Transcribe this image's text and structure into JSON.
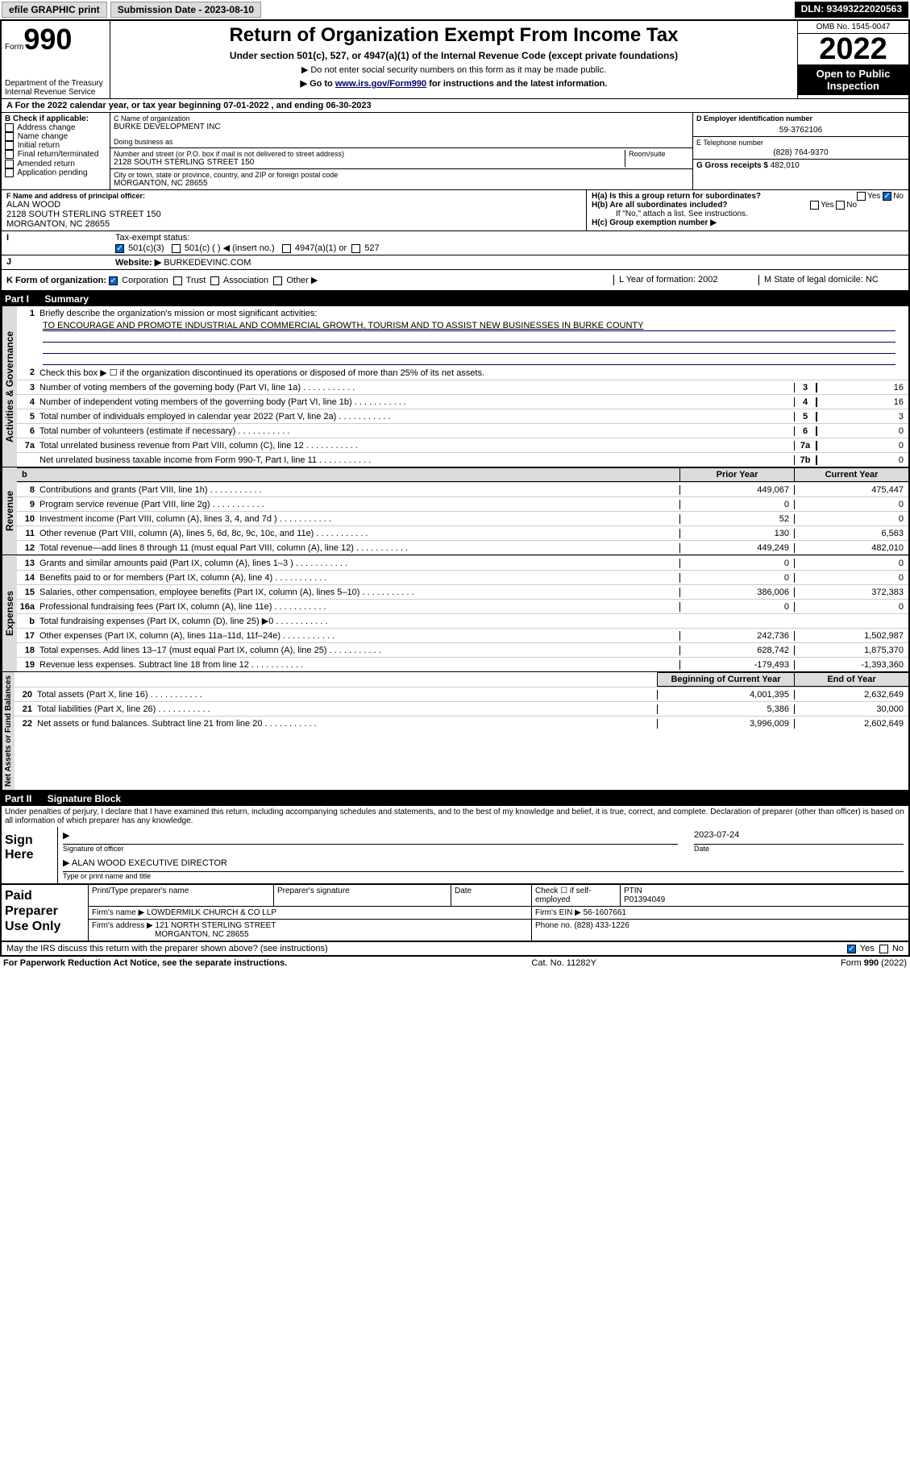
{
  "topbar": {
    "efile": "efile GRAPHIC print",
    "submission": "Submission Date - 2023-08-10",
    "dln": "DLN: 93493222020563"
  },
  "header": {
    "form_word": "Form",
    "form_num": "990",
    "dept": "Department of the Treasury\nInternal Revenue Service",
    "title": "Return of Organization Exempt From Income Tax",
    "sub1": "Under section 501(c), 527, or 4947(a)(1) of the Internal Revenue Code (except private foundations)",
    "sub2": "▶ Do not enter social security numbers on this form as it may be made public.",
    "sub3_pre": "▶ Go to ",
    "sub3_link": "www.irs.gov/Form990",
    "sub3_post": " for instructions and the latest information.",
    "omb": "OMB No. 1545-0047",
    "year": "2022",
    "open": "Open to Public Inspection"
  },
  "period": {
    "label_a": "A For the 2022 calendar year, or tax year beginning ",
    "begin": "07-01-2022",
    "mid": " , and ending ",
    "end": "06-30-2023"
  },
  "boxB": {
    "label": "B Check if applicable:",
    "items": [
      "Address change",
      "Name change",
      "Initial return",
      "Final return/terminated",
      "Amended return",
      "Application pending"
    ]
  },
  "boxC": {
    "name_label": "C Name of organization",
    "name": "BURKE DEVELOPMENT INC",
    "dba_label": "Doing business as",
    "street_label": "Number and street (or P.O. box if mail is not delivered to street address)",
    "room_label": "Room/suite",
    "street": "2128 SOUTH STERLING STREET 150",
    "city_label": "City or town, state or province, country, and ZIP or foreign postal code",
    "city": "MORGANTON, NC  28655"
  },
  "boxD": {
    "label": "D Employer identification number",
    "value": "59-3762106"
  },
  "boxE": {
    "label": "E Telephone number",
    "value": "(828) 764-9370"
  },
  "boxG": {
    "label": "G Gross receipts $ ",
    "value": "482,010"
  },
  "boxF": {
    "label": "F Name and address of principal officer:",
    "name": "ALAN WOOD",
    "addr1": "2128 SOUTH STERLING STREET 150",
    "addr2": "MORGANTON, NC  28655"
  },
  "boxH": {
    "a": "H(a)  Is this a group return for subordinates?",
    "b": "H(b)  Are all subordinates included?",
    "b_note": "If \"No,\" attach a list. See instructions.",
    "c": "H(c)  Group exemption number ▶",
    "yes": "Yes",
    "no": "No"
  },
  "lineI": {
    "label": "Tax-exempt status:",
    "opts": [
      "501(c)(3)",
      "501(c) (  ) ◀ (insert no.)",
      "4947(a)(1) or",
      "527"
    ]
  },
  "lineJ": {
    "label": "Website: ▶",
    "value": "BURKEDEVINC.COM"
  },
  "lineK": {
    "label": "K Form of organization:",
    "opts": [
      "Corporation",
      "Trust",
      "Association",
      "Other ▶"
    ],
    "L": "L Year of formation: 2002",
    "M": "M State of legal domicile: NC"
  },
  "part1": {
    "name": "Part I",
    "title": "Summary"
  },
  "summary": {
    "q1": "Briefly describe the organization's mission or most significant activities:",
    "q1v": "TO ENCOURAGE AND PROMOTE INDUSTRIAL AND COMMERCIAL GROWTH, TOURISM AND TO ASSIST NEW BUSINESSES IN BURKE COUNTY",
    "q2": "Check this box ▶ ☐  if the organization discontinued its operations or disposed of more than 25% of its net assets.",
    "rows_gov": [
      {
        "n": "3",
        "t": "Number of voting members of the governing body (Part VI, line 1a)",
        "c": "3",
        "v": "16"
      },
      {
        "n": "4",
        "t": "Number of independent voting members of the governing body (Part VI, line 1b)",
        "c": "4",
        "v": "16"
      },
      {
        "n": "5",
        "t": "Total number of individuals employed in calendar year 2022 (Part V, line 2a)",
        "c": "5",
        "v": "3"
      },
      {
        "n": "6",
        "t": "Total number of volunteers (estimate if necessary)",
        "c": "6",
        "v": "0"
      },
      {
        "n": "7a",
        "t": "Total unrelated business revenue from Part VIII, column (C), line 12",
        "c": "7a",
        "v": "0"
      },
      {
        "n": "",
        "t": "Net unrelated business taxable income from Form 990-T, Part I, line 11",
        "c": "7b",
        "v": "0"
      }
    ],
    "py": "Prior Year",
    "cy": "Current Year",
    "rows_rev": [
      {
        "n": "8",
        "t": "Contributions and grants (Part VIII, line 1h)",
        "p": "449,067",
        "c": "475,447"
      },
      {
        "n": "9",
        "t": "Program service revenue (Part VIII, line 2g)",
        "p": "0",
        "c": "0"
      },
      {
        "n": "10",
        "t": "Investment income (Part VIII, column (A), lines 3, 4, and 7d )",
        "p": "52",
        "c": "0"
      },
      {
        "n": "11",
        "t": "Other revenue (Part VIII, column (A), lines 5, 6d, 8c, 9c, 10c, and 11e)",
        "p": "130",
        "c": "6,563"
      },
      {
        "n": "12",
        "t": "Total revenue—add lines 8 through 11 (must equal Part VIII, column (A), line 12)",
        "p": "449,249",
        "c": "482,010"
      }
    ],
    "rows_exp": [
      {
        "n": "13",
        "t": "Grants and similar amounts paid (Part IX, column (A), lines 1–3 )",
        "p": "0",
        "c": "0"
      },
      {
        "n": "14",
        "t": "Benefits paid to or for members (Part IX, column (A), line 4)",
        "p": "0",
        "c": "0"
      },
      {
        "n": "15",
        "t": "Salaries, other compensation, employee benefits (Part IX, column (A), lines 5–10)",
        "p": "386,006",
        "c": "372,383"
      },
      {
        "n": "16a",
        "t": "Professional fundraising fees (Part IX, column (A), line 11e)",
        "p": "0",
        "c": "0"
      },
      {
        "n": "b",
        "t": "Total fundraising expenses (Part IX, column (D), line 25) ▶0",
        "p": "",
        "c": ""
      },
      {
        "n": "17",
        "t": "Other expenses (Part IX, column (A), lines 11a–11d, 11f–24e)",
        "p": "242,736",
        "c": "1,502,987"
      },
      {
        "n": "18",
        "t": "Total expenses. Add lines 13–17 (must equal Part IX, column (A), line 25)",
        "p": "628,742",
        "c": "1,875,370"
      },
      {
        "n": "19",
        "t": "Revenue less expenses. Subtract line 18 from line 12",
        "p": "-179,493",
        "c": "-1,393,360"
      }
    ],
    "bcy": "Beginning of Current Year",
    "eoy": "End of Year",
    "rows_net": [
      {
        "n": "20",
        "t": "Total assets (Part X, line 16)",
        "p": "4,001,395",
        "c": "2,632,649"
      },
      {
        "n": "21",
        "t": "Total liabilities (Part X, line 26)",
        "p": "5,386",
        "c": "30,000"
      },
      {
        "n": "22",
        "t": "Net assets or fund balances. Subtract line 21 from line 20",
        "p": "3,996,009",
        "c": "2,602,649"
      }
    ]
  },
  "tabs": {
    "gov": "Activities & Governance",
    "rev": "Revenue",
    "exp": "Expenses",
    "net": "Net Assets or Fund Balances"
  },
  "part2": {
    "name": "Part II",
    "title": "Signature Block"
  },
  "penalties": "Under penalties of perjury, I declare that I have examined this return, including accompanying schedules and statements, and to the best of my knowledge and belief, it is true, correct, and complete. Declaration of preparer (other than officer) is based on all information of which preparer has any knowledge.",
  "sign": {
    "label": "Sign Here",
    "sig_of": "Signature of officer",
    "date": "Date",
    "date_val": "2023-07-24",
    "name": "ALAN WOOD  EXECUTIVE DIRECTOR",
    "name_label": "Type or print name and title"
  },
  "paid": {
    "label": "Paid Preparer Use Only",
    "h_name": "Print/Type preparer's name",
    "h_sig": "Preparer's signature",
    "h_date": "Date",
    "h_check": "Check ☐ if self-employed",
    "h_ptin": "PTIN",
    "ptin": "P01394049",
    "firm_name_l": "Firm's name   ▶",
    "firm_name": "LOWDERMILK CHURCH & CO LLP",
    "firm_ein_l": "Firm's EIN ▶",
    "firm_ein": "56-1607661",
    "firm_addr_l": "Firm's address ▶",
    "firm_addr1": "121 NORTH STERLING STREET",
    "firm_addr2": "MORGANTON, NC  28655",
    "phone_l": "Phone no.",
    "phone": "(828) 433-1226"
  },
  "may": {
    "txt": "May the IRS discuss this return with the preparer shown above? (see instructions)",
    "yes": "Yes",
    "no": "No"
  },
  "footer": {
    "pra": "For Paperwork Reduction Act Notice, see the separate instructions.",
    "cat": "Cat. No. 11282Y",
    "form": "Form 990 (2022)"
  },
  "colors": {
    "link": "#0000cc",
    "headerbg": "#000000",
    "gray": "#dcdcdc"
  }
}
